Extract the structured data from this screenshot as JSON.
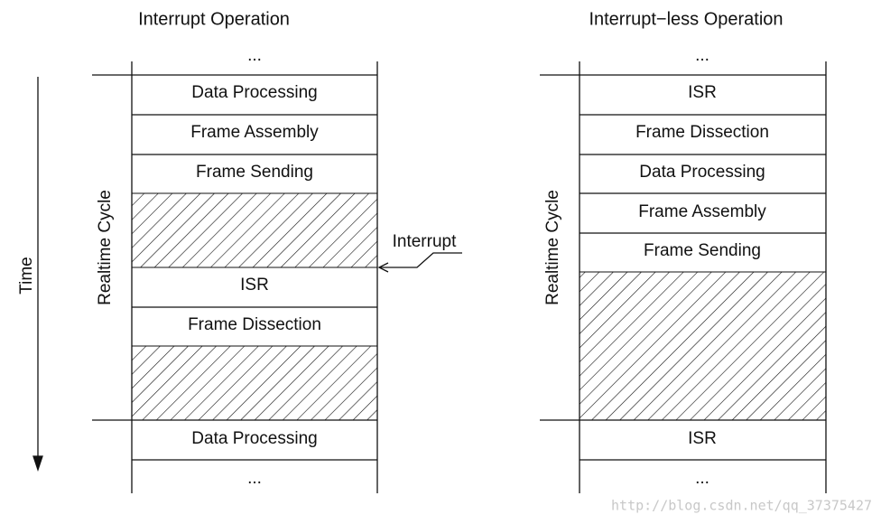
{
  "left": {
    "title": "Interrupt Operation",
    "top_ellipsis": "...",
    "rows": [
      "Data Processing",
      "Frame Assembly",
      "Frame Sending",
      "ISR",
      "Frame Dissection",
      "Data Processing"
    ],
    "bottom_ellipsis": "...",
    "cycle_label": "Realtime Cycle",
    "interrupt_label": "Interrupt"
  },
  "right": {
    "title": "Interrupt−less Operation",
    "top_ellipsis": "...",
    "rows": [
      "ISR",
      "Frame Dissection",
      "Data Processing",
      "Frame Assembly",
      "Frame Sending",
      "ISR"
    ],
    "bottom_ellipsis": "...",
    "cycle_label": "Realtime Cycle"
  },
  "time_label": "Time",
  "watermark": "http://blog.csdn.net/qq_37375427"
}
